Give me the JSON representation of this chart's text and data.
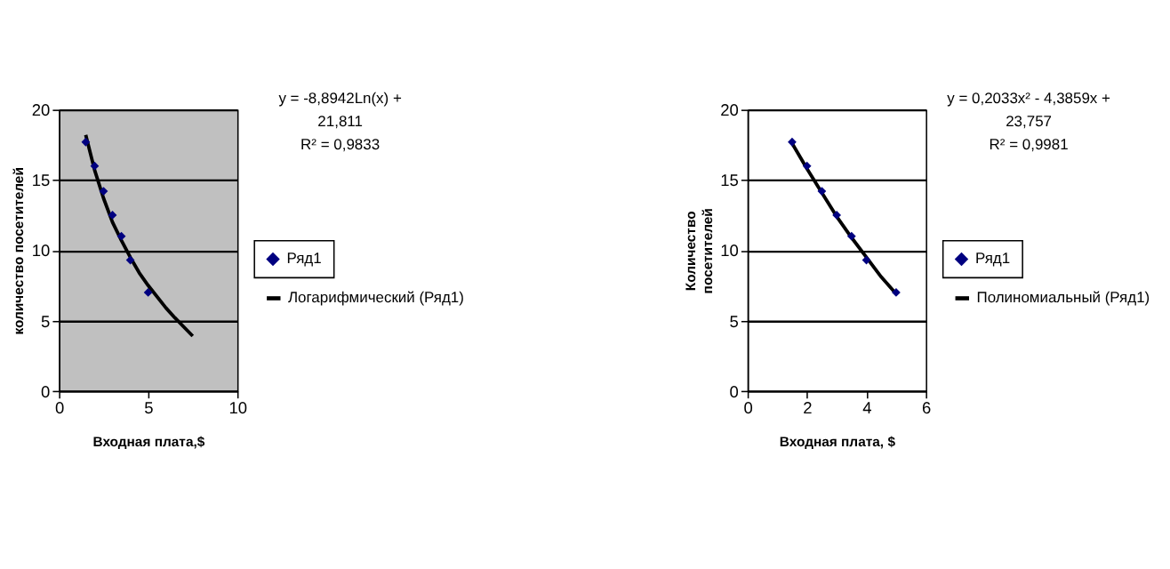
{
  "chart_data": [
    {
      "type": "scatter",
      "xlabel": "Входная плата,$",
      "ylabel": "количество посетителей",
      "xlim": [
        0,
        10
      ],
      "xticks": [
        0,
        5,
        10
      ],
      "ylim": [
        0,
        20
      ],
      "yticks": [
        0,
        5,
        10,
        15,
        20
      ],
      "grid": "y",
      "legend": "right",
      "annotations": [
        "y = -8,8942Ln(x) +",
        "21,811",
        "R² = 0,9833"
      ],
      "series": [
        {
          "name": "Ряд1",
          "marker": "diamond",
          "color": "#000080",
          "x": [
            1.5,
            2,
            2.5,
            3,
            3.5,
            4,
            5
          ],
          "values": [
            17.7,
            16.0,
            14.2,
            12.5,
            11.0,
            9.3,
            7.0
          ]
        },
        {
          "name": "Логарифмический (Ряд1)",
          "type": "line",
          "marker": "none",
          "line_style": "solid",
          "color": "#000000",
          "x": [
            1.5,
            2,
            2.5,
            3,
            3.5,
            4,
            4.5,
            5,
            6,
            6.5,
            7.5
          ],
          "values": [
            18.2,
            15.7,
            13.7,
            12.0,
            10.7,
            9.5,
            8.4,
            7.5,
            5.9,
            5.2,
            3.9
          ]
        }
      ]
    },
    {
      "type": "scatter",
      "xlabel": "Входная плата, $",
      "ylabel": [
        "Количество",
        "посетителей"
      ],
      "xlim": [
        0,
        6
      ],
      "xticks": [
        0,
        2,
        4,
        6
      ],
      "ylim": [
        0,
        20
      ],
      "yticks": [
        0,
        5,
        10,
        15,
        20
      ],
      "grid": "y",
      "legend": "right",
      "annotations": [
        "y = 0,2033x² - 4,3859x +",
        "23,757",
        "R² = 0,9981"
      ],
      "series": [
        {
          "name": "Ряд1",
          "marker": "diamond",
          "color": "#000080",
          "x": [
            1.5,
            2,
            2.5,
            3,
            3.5,
            4,
            5
          ],
          "values": [
            17.7,
            16.0,
            14.2,
            12.5,
            11.0,
            9.3,
            7.0
          ]
        },
        {
          "name": "Полиномиальный (Ряд1)",
          "type": "line",
          "marker": "none",
          "line_style": "solid",
          "color": "#000000",
          "x": [
            1.5,
            2,
            2.5,
            3,
            3.5,
            4,
            4.5,
            5
          ],
          "values": [
            17.6,
            15.8,
            14.1,
            12.4,
            10.9,
            9.5,
            8.1,
            6.9
          ]
        }
      ]
    }
  ]
}
